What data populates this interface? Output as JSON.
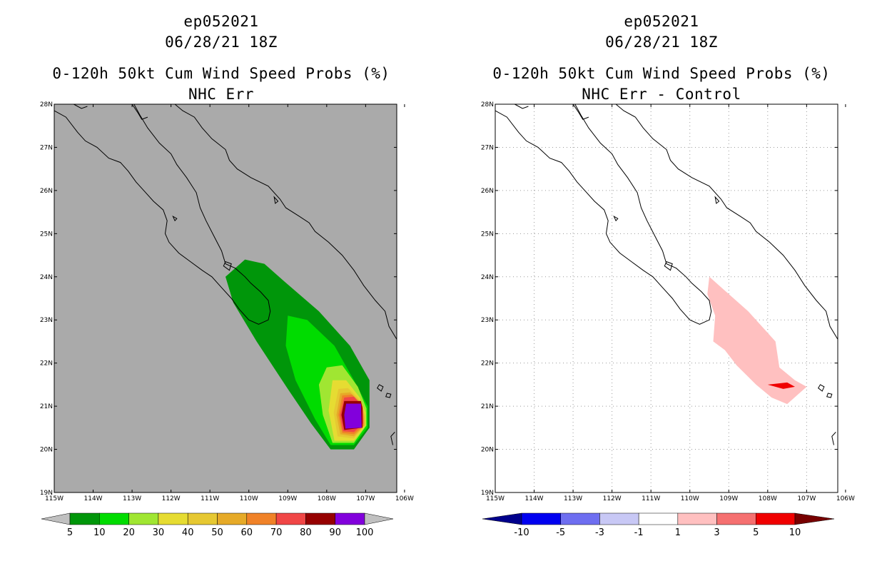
{
  "left": {
    "title1": "ep052021",
    "title2": "06/28/21 18Z",
    "title3": "0-120h 50kt Cum Wind Speed Probs (%)",
    "title4": "NHC Err"
  },
  "right": {
    "title1": "ep052021",
    "title2": "06/28/21 18Z",
    "title3": "0-120h 50kt Cum Wind Speed Probs (%)",
    "title4": "NHC Err - Control"
  },
  "chart_data": [
    {
      "type": "heatmap",
      "title": "0-120h 50kt Cum Wind Speed Probs (%) NHC Err",
      "xlabel": "",
      "ylabel": "",
      "xlim": [
        -115,
        -106.2
      ],
      "ylim": [
        19,
        28
      ],
      "x_ticks": [
        "115W",
        "114W",
        "113W",
        "112W",
        "111W",
        "110W",
        "109W",
        "108W",
        "107W",
        "106W"
      ],
      "y_ticks": [
        "19N",
        "20N",
        "21N",
        "22N",
        "23N",
        "24N",
        "25N",
        "26N",
        "27N",
        "28N"
      ],
      "background": "#aaaaaa",
      "grid": false,
      "levels": [
        5,
        10,
        20,
        30,
        40,
        50,
        60,
        70,
        80,
        90,
        100
      ],
      "colors": [
        "#00960a",
        "#00dc00",
        "#a0e632",
        "#e6dc32",
        "#e6c832",
        "#e6aa28",
        "#f08228",
        "#f04646",
        "#960000",
        "#8200dc"
      ],
      "contours": [
        {
          "level": 5,
          "polygon": [
            [
              -110.6,
              24.0
            ],
            [
              -110.1,
              24.4
            ],
            [
              -109.6,
              24.3
            ],
            [
              -109.1,
              23.9
            ],
            [
              -108.2,
              23.2
            ],
            [
              -107.4,
              22.4
            ],
            [
              -106.9,
              21.6
            ],
            [
              -106.9,
              20.5
            ],
            [
              -107.3,
              20.0
            ],
            [
              -107.9,
              20.0
            ],
            [
              -108.4,
              20.6
            ],
            [
              -109.0,
              21.4
            ],
            [
              -109.8,
              22.5
            ],
            [
              -110.4,
              23.4
            ]
          ]
        },
        {
          "level": 10,
          "polygon": [
            [
              -109.0,
              23.1
            ],
            [
              -108.5,
              23.0
            ],
            [
              -107.8,
              22.4
            ],
            [
              -107.3,
              21.6
            ],
            [
              -106.95,
              21.0
            ],
            [
              -106.95,
              20.5
            ],
            [
              -107.3,
              20.1
            ],
            [
              -107.9,
              20.1
            ],
            [
              -108.3,
              20.7
            ],
            [
              -108.8,
              21.6
            ],
            [
              -109.05,
              22.4
            ]
          ]
        },
        {
          "level": 20,
          "polygon": [
            [
              -108.0,
              21.9
            ],
            [
              -107.6,
              21.95
            ],
            [
              -107.2,
              21.45
            ],
            [
              -106.98,
              20.95
            ],
            [
              -106.98,
              20.55
            ],
            [
              -107.3,
              20.15
            ],
            [
              -107.85,
              20.15
            ],
            [
              -108.1,
              20.8
            ],
            [
              -108.2,
              21.5
            ]
          ]
        },
        {
          "level": 30,
          "polygon": [
            [
              -107.85,
              21.6
            ],
            [
              -107.5,
              21.6
            ],
            [
              -107.15,
              21.2
            ],
            [
              -107.0,
              20.85
            ],
            [
              -107.0,
              20.55
            ],
            [
              -107.3,
              20.2
            ],
            [
              -107.8,
              20.2
            ],
            [
              -107.95,
              20.9
            ]
          ]
        },
        {
          "level": 40,
          "polygon": [
            [
              -107.7,
              21.4
            ],
            [
              -107.45,
              21.42
            ],
            [
              -107.1,
              21.1
            ],
            [
              -107.02,
              20.8
            ],
            [
              -107.02,
              20.55
            ],
            [
              -107.3,
              20.25
            ],
            [
              -107.72,
              20.3
            ],
            [
              -107.82,
              20.85
            ]
          ]
        },
        {
          "level": 50,
          "polygon": [
            [
              -107.65,
              21.3
            ],
            [
              -107.4,
              21.32
            ],
            [
              -107.08,
              21.05
            ],
            [
              -107.03,
              20.75
            ],
            [
              -107.03,
              20.55
            ],
            [
              -107.3,
              20.3
            ],
            [
              -107.65,
              20.35
            ],
            [
              -107.75,
              20.8
            ]
          ]
        },
        {
          "level": 60,
          "polygon": [
            [
              -107.6,
              21.25
            ],
            [
              -107.35,
              21.27
            ],
            [
              -107.08,
              21.0
            ],
            [
              -107.05,
              20.7
            ],
            [
              -107.05,
              20.55
            ],
            [
              -107.3,
              20.35
            ],
            [
              -107.6,
              20.38
            ],
            [
              -107.7,
              20.8
            ]
          ]
        },
        {
          "level": 70,
          "polygon": [
            [
              -107.55,
              21.2
            ],
            [
              -107.3,
              21.22
            ],
            [
              -107.08,
              21.0
            ],
            [
              -107.06,
              20.6
            ],
            [
              -107.3,
              20.4
            ],
            [
              -107.58,
              20.42
            ],
            [
              -107.66,
              20.8
            ]
          ]
        },
        {
          "level": 80,
          "polygon": [
            [
              -107.55,
              21.12
            ],
            [
              -107.12,
              21.12
            ],
            [
              -107.08,
              20.95
            ],
            [
              -107.08,
              20.5
            ],
            [
              -107.55,
              20.45
            ],
            [
              -107.62,
              20.8
            ]
          ]
        },
        {
          "level": 90,
          "polygon": [
            [
              -107.5,
              21.06
            ],
            [
              -107.12,
              21.06
            ],
            [
              -107.1,
              20.5
            ],
            [
              -107.52,
              20.48
            ],
            [
              -107.55,
              20.8
            ]
          ]
        },
        {
          "level": 100,
          "polygon": [
            [
              -107.5,
              21.04
            ],
            [
              -107.12,
              21.04
            ],
            [
              -107.12,
              20.55
            ],
            [
              -107.5,
              20.55
            ]
          ]
        }
      ]
    },
    {
      "type": "heatmap",
      "title": "0-120h 50kt Cum Wind Speed Probs (%) NHC Err - Control",
      "xlabel": "",
      "ylabel": "",
      "xlim": [
        -115,
        -106.2
      ],
      "ylim": [
        19,
        28
      ],
      "x_ticks": [
        "115W",
        "114W",
        "113W",
        "112W",
        "111W",
        "110W",
        "109W",
        "108W",
        "107W",
        "106W"
      ],
      "y_ticks": [
        "19N",
        "20N",
        "21N",
        "22N",
        "23N",
        "24N",
        "25N",
        "26N",
        "27N",
        "28N"
      ],
      "background": "#ffffff",
      "grid": true,
      "levels": [
        -10,
        -5,
        -3,
        -1,
        1,
        3,
        5,
        10
      ],
      "colors": [
        "#00008c",
        "#0000f0",
        "#6e6ef0",
        "#c8c8f5",
        "#ffffff",
        "#ffc0c0",
        "#f57070",
        "#f00000",
        "#780000"
      ],
      "contours": [
        {
          "level": 1,
          "polygon": [
            [
              -109.5,
              24.0
            ],
            [
              -109.0,
              23.6
            ],
            [
              -108.5,
              23.2
            ],
            [
              -107.8,
              22.5
            ],
            [
              -107.7,
              21.9
            ],
            [
              -107.3,
              21.6
            ],
            [
              -107.0,
              21.45
            ],
            [
              -107.5,
              21.05
            ],
            [
              -107.9,
              21.2
            ],
            [
              -108.3,
              21.5
            ],
            [
              -108.8,
              21.95
            ],
            [
              -109.1,
              22.3
            ],
            [
              -109.4,
              22.5
            ],
            [
              -109.35,
              23.1
            ],
            [
              -109.55,
              23.6
            ]
          ]
        },
        {
          "level": 5,
          "polygon": [
            [
              -108.0,
              21.5
            ],
            [
              -107.5,
              21.55
            ],
            [
              -107.3,
              21.45
            ],
            [
              -107.6,
              21.4
            ]
          ]
        }
      ]
    }
  ],
  "colorbar_left": {
    "labels": [
      "5",
      "10",
      "20",
      "30",
      "40",
      "50",
      "60",
      "70",
      "80",
      "90",
      "100"
    ],
    "colors": [
      "#00960a",
      "#00dc00",
      "#a0e632",
      "#e6dc32",
      "#e6c832",
      "#e6aa28",
      "#f08228",
      "#f04646",
      "#960000",
      "#8200dc"
    ],
    "under_color": "#c0c0c0",
    "over_color": "#c0c0c0"
  },
  "colorbar_right": {
    "labels": [
      "-10",
      "-5",
      "-3",
      "-1",
      "1",
      "3",
      "5",
      "10"
    ],
    "colors": [
      "#0000f0",
      "#6e6ef0",
      "#c8c8f5",
      "#ffffff",
      "#ffc0c0",
      "#f57070",
      "#f00000"
    ],
    "under_color": "#00008c",
    "over_color": "#780000"
  }
}
